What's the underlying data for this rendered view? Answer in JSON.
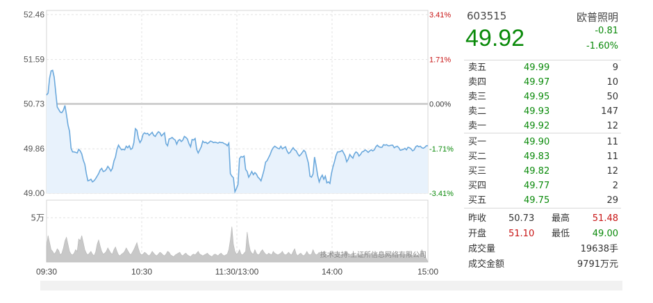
{
  "chart_data": {
    "type": "line",
    "title": "",
    "prev_close": 50.73,
    "price_ticks": [
      "52.46",
      "51.59",
      "50.73",
      "49.86",
      "49.00"
    ],
    "price_tick_values": [
      52.46,
      51.59,
      50.73,
      49.86,
      49.0
    ],
    "pct_ticks": [
      "3.41%",
      "1.71%",
      "0.00%",
      "-1.71%",
      "-3.41%"
    ],
    "time_ticks": [
      "09:30",
      "10:30",
      "11:30/13:00",
      "14:00",
      "15:00"
    ],
    "volume_tick": "5万",
    "volume_max": 70000,
    "watermark": "技术支持:上证所信息网络有限公司",
    "price_series": [
      50.9,
      50.94,
      51.23,
      51.37,
      51.38,
      51.25,
      50.96,
      50.67,
      50.62,
      50.57,
      50.56,
      50.61,
      50.7,
      50.52,
      50.32,
      50.2,
      49.87,
      49.8,
      49.8,
      49.79,
      49.78,
      49.85,
      49.82,
      49.76,
      49.64,
      49.56,
      49.38,
      49.24,
      49.25,
      49.27,
      49.22,
      49.24,
      49.28,
      49.33,
      49.38,
      49.45,
      49.48,
      49.42,
      49.43,
      49.46,
      49.52,
      49.48,
      49.43,
      49.48,
      49.62,
      49.7,
      49.85,
      49.93,
      49.88,
      49.84,
      49.85,
      49.84,
      49.91,
      49.88,
      49.92,
      49.85,
      49.87,
      49.98,
      50.25,
      50.22,
      50.06,
      49.98,
      50.03,
      50.14,
      50.17,
      50.15,
      50.16,
      50.12,
      50.15,
      50.18,
      50.12,
      50.1,
      50.15,
      50.19,
      50.17,
      50.11,
      50.14,
      50.17,
      49.96,
      49.92,
      50.05,
      50.06,
      50.08,
      50.05,
      50.03,
      49.95,
      50.02,
      50.04,
      50.0,
      50.03,
      50.1,
      50.08,
      50.05,
      49.96,
      49.9,
      50.04,
      50.03,
      50.06,
      49.85,
      49.78,
      49.84,
      49.9,
      50.01,
      49.98,
      49.99,
      49.96,
      49.98,
      50.01,
      50.0,
      49.98,
      49.99,
      49.98,
      49.97,
      49.99,
      49.98,
      49.98,
      49.96,
      49.95,
      49.92,
      49.97,
      49.38,
      49.33,
      49.3,
      49.03,
      49.09,
      49.17,
      49.67,
      49.71,
      49.7,
      49.72,
      49.46,
      49.42,
      49.31,
      49.36,
      49.42,
      49.36,
      49.4,
      49.37,
      49.31,
      49.28,
      49.24,
      49.34,
      49.45,
      49.6,
      49.63,
      49.69,
      49.75,
      49.83,
      49.88,
      49.91,
      49.89,
      49.87,
      49.86,
      49.91,
      49.86,
      49.88,
      49.9,
      49.82,
      49.77,
      49.79,
      49.84,
      49.88,
      49.84,
      49.82,
      49.76,
      49.72,
      49.75,
      49.79,
      49.83,
      49.8,
      49.69,
      49.58,
      49.33,
      49.31,
      49.37,
      49.7,
      49.54,
      49.34,
      49.22,
      49.3,
      49.35,
      49.27,
      49.33,
      49.2,
      49.22,
      49.19,
      49.38,
      49.51,
      49.61,
      49.73,
      49.8,
      49.8,
      49.81,
      49.83,
      49.78,
      49.72,
      49.61,
      49.66,
      49.75,
      49.71,
      49.68,
      49.76,
      49.8,
      49.78,
      49.72,
      49.75,
      49.8,
      49.81,
      49.84,
      49.82,
      49.79,
      49.82,
      49.84,
      49.82,
      49.84,
      49.9,
      49.93,
      49.9,
      49.89,
      49.89,
      49.94,
      49.93,
      49.94,
      49.92,
      49.92,
      49.93,
      49.93,
      49.88,
      49.9,
      49.91,
      49.88,
      49.83,
      49.84,
      49.85,
      49.87,
      49.84,
      49.89,
      49.88,
      49.86,
      49.82,
      49.84,
      49.9,
      49.92,
      49.9,
      49.91,
      49.88,
      49.87,
      49.89,
      49.92,
      49.92
    ],
    "volume_series": [
      18000,
      30000,
      22000,
      14000,
      12000,
      9000,
      11000,
      15000,
      13000,
      8000,
      10000,
      16000,
      24000,
      28000,
      20000,
      12000,
      9000,
      8000,
      10000,
      14000,
      12000,
      26000,
      24000,
      30000,
      22000,
      14000,
      10000,
      8000,
      10000,
      12000,
      9000,
      7000,
      11000,
      20000,
      25000,
      18000,
      12000,
      9000,
      10000,
      12000,
      16000,
      13000,
      10000,
      9000,
      14000,
      17000,
      12000,
      8000,
      7000,
      9000,
      10000,
      12000,
      16000,
      13000,
      10000,
      8000,
      11000,
      14000,
      18000,
      22000,
      15000,
      10000,
      8000,
      9000,
      11000,
      10000,
      8000,
      7000,
      9000,
      12000,
      10000,
      8000,
      7000,
      9000,
      11000,
      10000,
      8000,
      7000,
      9000,
      12000,
      11000,
      8000,
      7000,
      6000,
      8000,
      9000,
      10000,
      11000,
      8000,
      7000,
      9000,
      10000,
      8000,
      7000,
      6000,
      8000,
      9000,
      8000,
      10000,
      12000,
      9000,
      8000,
      7000,
      8000,
      9000,
      10000,
      8000,
      7000,
      6000,
      8000,
      9000,
      8000,
      7000,
      9000,
      10000,
      8000,
      7000,
      8000,
      9000,
      14000,
      25000,
      40000,
      20000,
      12000,
      9000,
      10000,
      14000,
      9000,
      8000,
      10000,
      12000,
      34000,
      21000,
      13000,
      10000,
      9000,
      14000,
      10000,
      8000,
      9000,
      12000,
      14000,
      11000,
      9000,
      8000,
      10000,
      9000,
      8000,
      12000,
      10000,
      9000,
      8000,
      9000,
      10000,
      12000,
      9000,
      8000,
      9000,
      11000,
      9000,
      8000,
      12000,
      15000,
      9000,
      7000,
      9000,
      10000,
      8000,
      7000,
      9000,
      12000,
      9000,
      8000,
      9000,
      14000,
      10000,
      8000,
      9000,
      11000,
      9000,
      10000,
      12000,
      9000,
      8000,
      7000,
      9000,
      10000,
      12000,
      9000,
      8000,
      9000,
      10000,
      8000,
      7000,
      9000,
      10000,
      12000,
      9000,
      8000,
      9000,
      10000,
      8000,
      7000,
      9000,
      8000,
      7000,
      9000,
      8000,
      10000,
      9000,
      8000,
      7000,
      9000,
      8000,
      9000,
      10000,
      8000,
      9000,
      8000,
      7000,
      9000,
      8000,
      10000,
      9000,
      8000,
      7000,
      9000,
      8000,
      7000,
      9000,
      8000,
      9000,
      8000,
      7000,
      9000,
      8000,
      10000,
      9000,
      8000,
      7000,
      9000,
      8000,
      7000,
      9000,
      8000,
      14000
    ]
  },
  "colors": {
    "up": "#c81414",
    "down": "#0a8a0a",
    "line": "#6aa8dc",
    "fill": "#e8f2fc",
    "volume": "#c8c8c8",
    "grid": "#e2e2e2"
  },
  "quote": {
    "code": "603515",
    "name": "欧普照明",
    "price": "49.92",
    "change": "-0.81",
    "change_pct": "-1.60%"
  },
  "order_book": {
    "asks": [
      {
        "label": "卖五",
        "price": "49.99",
        "volume": "9"
      },
      {
        "label": "卖四",
        "price": "49.97",
        "volume": "10"
      },
      {
        "label": "卖三",
        "price": "49.95",
        "volume": "50"
      },
      {
        "label": "卖二",
        "price": "49.93",
        "volume": "147"
      },
      {
        "label": "卖一",
        "price": "49.92",
        "volume": "12"
      }
    ],
    "bids": [
      {
        "label": "买一",
        "price": "49.90",
        "volume": "11"
      },
      {
        "label": "买二",
        "price": "49.83",
        "volume": "11"
      },
      {
        "label": "买三",
        "price": "49.82",
        "volume": "12"
      },
      {
        "label": "买四",
        "price": "49.77",
        "volume": "2"
      },
      {
        "label": "买五",
        "price": "49.75",
        "volume": "29"
      }
    ]
  },
  "stats": {
    "prev_close_label": "昨收",
    "prev_close": "50.73",
    "high_label": "最高",
    "high": "51.48",
    "open_label": "开盘",
    "open": "51.10",
    "low_label": "最低",
    "low": "49.00",
    "volume_label": "成交量",
    "volume": "19638手",
    "amount_label": "成交金额",
    "amount": "9791万元"
  }
}
